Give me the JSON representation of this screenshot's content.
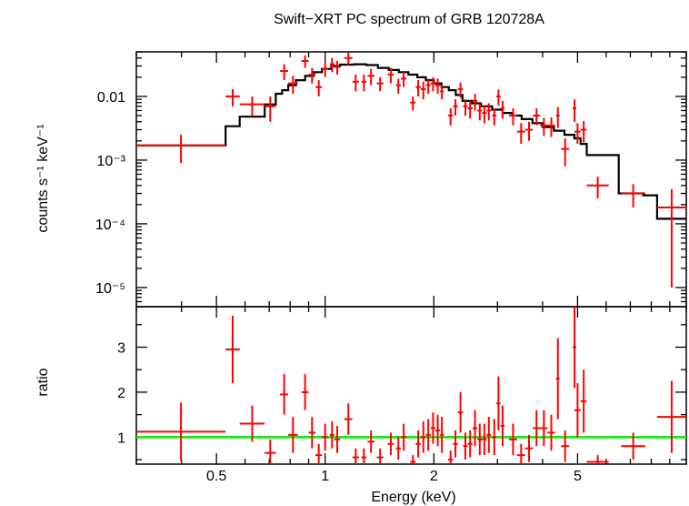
{
  "chart_data": [
    {
      "type": "scatter",
      "title": "Swift−XRT PC spectrum of GRB 120728A",
      "xlabel": "Energy (keV)",
      "ylabel": "counts s⁻¹ keV⁻¹",
      "xscale": "log",
      "yscale": "log",
      "xlim": [
        0.3,
        10
      ],
      "ylim": [
        5e-06,
        0.05
      ],
      "x_tick_labels": [
        "0.5",
        "1",
        "2",
        "5"
      ],
      "y_tick_labels": [
        "10⁻⁵",
        "10⁻⁴",
        "10⁻³",
        "0.01"
      ],
      "grid": false,
      "legend": "none",
      "colors": {
        "data": "#ff0000",
        "model": "#000000"
      },
      "series": [],
      "data_points": [
        [
          0.3,
          0.53,
          0.0017,
          0.0008
        ],
        [
          0.53,
          0.58,
          0.01,
          0.003
        ],
        [
          0.58,
          0.68,
          0.0075,
          0.0025
        ],
        [
          0.68,
          0.73,
          0.007,
          0.003
        ],
        [
          0.75,
          0.79,
          0.025,
          0.007
        ],
        [
          0.79,
          0.84,
          0.016,
          0.005
        ],
        [
          0.86,
          0.9,
          0.036,
          0.008
        ],
        [
          0.9,
          0.94,
          0.022,
          0.006
        ],
        [
          0.94,
          0.98,
          0.014,
          0.004
        ],
        [
          0.98,
          1.02,
          0.027,
          0.007
        ],
        [
          1.03,
          1.06,
          0.032,
          0.008
        ],
        [
          1.06,
          1.1,
          0.029,
          0.007
        ],
        [
          1.13,
          1.19,
          0.04,
          0.009
        ],
        [
          1.19,
          1.24,
          0.017,
          0.005
        ],
        [
          1.26,
          1.3,
          0.017,
          0.005
        ],
        [
          1.31,
          1.37,
          0.021,
          0.006
        ],
        [
          1.39,
          1.45,
          0.016,
          0.004
        ],
        [
          1.49,
          1.55,
          0.022,
          0.006
        ],
        [
          1.57,
          1.62,
          0.015,
          0.004
        ],
        [
          1.62,
          1.68,
          0.019,
          0.005
        ],
        [
          1.72,
          1.78,
          0.008,
          0.002
        ],
        [
          1.78,
          1.84,
          0.014,
          0.004
        ],
        [
          1.84,
          1.9,
          0.013,
          0.004
        ],
        [
          1.9,
          1.96,
          0.015,
          0.004
        ],
        [
          1.96,
          2.02,
          0.016,
          0.004
        ],
        [
          2.02,
          2.08,
          0.015,
          0.004
        ],
        [
          2.08,
          2.13,
          0.012,
          0.003
        ],
        [
          2.19,
          2.26,
          0.005,
          0.0015
        ],
        [
          2.26,
          2.33,
          0.007,
          0.002
        ],
        [
          2.33,
          2.41,
          0.013,
          0.0035
        ],
        [
          2.41,
          2.48,
          0.007,
          0.002
        ],
        [
          2.48,
          2.56,
          0.0065,
          0.002
        ],
        [
          2.56,
          2.64,
          0.0085,
          0.0025
        ],
        [
          2.64,
          2.72,
          0.006,
          0.0018
        ],
        [
          2.72,
          2.8,
          0.0055,
          0.0017
        ],
        [
          2.8,
          2.88,
          0.006,
          0.0018
        ],
        [
          2.9,
          2.98,
          0.005,
          0.0015
        ],
        [
          2.98,
          3.06,
          0.01,
          0.0028
        ],
        [
          3.06,
          3.14,
          0.0065,
          0.002
        ],
        [
          3.23,
          3.4,
          0.005,
          0.0015
        ],
        [
          3.4,
          3.58,
          0.0028,
          0.001
        ],
        [
          3.58,
          3.76,
          0.003,
          0.001
        ],
        [
          3.76,
          3.94,
          0.005,
          0.0015
        ],
        [
          3.94,
          4.13,
          0.0035,
          0.0011
        ],
        [
          4.13,
          4.33,
          0.0035,
          0.0012
        ],
        [
          4.36,
          4.46,
          0.005,
          0.0018
        ],
        [
          4.5,
          4.74,
          0.0015,
          0.0007
        ],
        [
          4.85,
          4.96,
          0.0065,
          0.0025
        ],
        [
          4.9,
          5.1,
          0.0028,
          0.001
        ],
        [
          5.1,
          5.3,
          0.003,
          0.0011
        ],
        [
          5.3,
          6.1,
          0.0004,
          0.00015
        ],
        [
          6.6,
          7.7,
          0.0003,
          0.00012
        ],
        [
          8.3,
          10.0,
          0.00018,
          0.00017
        ]
      ],
      "model_steps": [
        [
          0.3,
          0.0017
        ],
        [
          0.53,
          0.0034
        ],
        [
          0.58,
          0.0048
        ],
        [
          0.68,
          0.0075
        ],
        [
          0.73,
          0.011
        ],
        [
          0.76,
          0.0125
        ],
        [
          0.79,
          0.015
        ],
        [
          0.83,
          0.018
        ],
        [
          0.88,
          0.021
        ],
        [
          0.93,
          0.024
        ],
        [
          0.98,
          0.027
        ],
        [
          1.04,
          0.03
        ],
        [
          1.1,
          0.0315
        ],
        [
          1.2,
          0.032
        ],
        [
          1.3,
          0.031
        ],
        [
          1.4,
          0.028
        ],
        [
          1.5,
          0.026
        ],
        [
          1.6,
          0.024
        ],
        [
          1.7,
          0.022
        ],
        [
          1.8,
          0.02
        ],
        [
          1.9,
          0.018
        ],
        [
          2.0,
          0.016
        ],
        [
          2.1,
          0.014
        ],
        [
          2.2,
          0.0125
        ],
        [
          2.3,
          0.0105
        ],
        [
          2.4,
          0.0085
        ],
        [
          2.55,
          0.0078
        ],
        [
          2.7,
          0.007
        ],
        [
          2.9,
          0.0062
        ],
        [
          3.1,
          0.0055
        ],
        [
          3.3,
          0.005
        ],
        [
          3.5,
          0.0044
        ],
        [
          3.75,
          0.0038
        ],
        [
          4.0,
          0.0033
        ],
        [
          4.3,
          0.0029
        ],
        [
          4.6,
          0.0025
        ],
        [
          4.9,
          0.0022
        ],
        [
          5.1,
          0.0018
        ],
        [
          5.3,
          0.0012
        ],
        [
          5.9,
          0.0012
        ],
        [
          6.5,
          0.0003
        ],
        [
          7.6,
          0.00028
        ],
        [
          8.3,
          0.00012
        ],
        [
          10.0,
          0.00012
        ]
      ]
    },
    {
      "type": "scatter",
      "xlabel": "Energy (keV)",
      "ylabel": "ratio",
      "xscale": "log",
      "xlim": [
        0.3,
        10
      ],
      "ylim": [
        0.4,
        3.9
      ],
      "x_tick_labels": [
        "0.5",
        "1",
        "2",
        "5"
      ],
      "y_tick_labels": [
        "1",
        "2",
        "3"
      ],
      "reference_line": 1,
      "colors": {
        "data": "#ff0000",
        "reference": "#00ee00"
      },
      "data_points": [
        [
          0.3,
          0.53,
          1.12,
          0.65
        ],
        [
          0.53,
          0.58,
          2.95,
          0.75
        ],
        [
          0.58,
          0.68,
          1.3,
          0.4
        ],
        [
          0.68,
          0.73,
          0.65,
          0.3
        ],
        [
          0.75,
          0.79,
          1.95,
          0.45
        ],
        [
          0.79,
          0.84,
          1.05,
          0.4
        ],
        [
          0.86,
          0.9,
          2.0,
          0.4
        ],
        [
          0.9,
          0.94,
          1.1,
          0.35
        ],
        [
          0.94,
          0.98,
          0.6,
          0.25
        ],
        [
          0.98,
          1.02,
          1.0,
          0.3
        ],
        [
          1.03,
          1.06,
          1.05,
          0.3
        ],
        [
          1.06,
          1.1,
          0.95,
          0.3
        ],
        [
          1.13,
          1.19,
          1.4,
          0.35
        ],
        [
          1.19,
          1.24,
          0.55,
          0.2
        ],
        [
          1.26,
          1.3,
          0.55,
          0.2
        ],
        [
          1.31,
          1.37,
          0.9,
          0.25
        ],
        [
          1.39,
          1.45,
          0.55,
          0.2
        ],
        [
          1.49,
          1.55,
          0.85,
          0.25
        ],
        [
          1.57,
          1.62,
          0.75,
          0.25
        ],
        [
          1.62,
          1.68,
          1.0,
          0.3
        ],
        [
          1.72,
          1.78,
          0.45,
          0.15
        ],
        [
          1.78,
          1.84,
          0.85,
          0.3
        ],
        [
          1.84,
          1.9,
          1.0,
          0.35
        ],
        [
          1.9,
          1.96,
          1.05,
          0.35
        ],
        [
          1.96,
          2.02,
          1.2,
          0.35
        ],
        [
          2.02,
          2.08,
          1.15,
          0.35
        ],
        [
          2.08,
          2.13,
          1.05,
          0.4
        ],
        [
          2.19,
          2.26,
          0.5,
          0.2
        ],
        [
          2.26,
          2.33,
          0.85,
          0.3
        ],
        [
          2.33,
          2.41,
          1.55,
          0.45
        ],
        [
          2.41,
          2.48,
          0.8,
          0.3
        ],
        [
          2.48,
          2.56,
          0.85,
          0.3
        ],
        [
          2.56,
          2.64,
          1.2,
          0.4
        ],
        [
          2.64,
          2.72,
          0.95,
          0.35
        ],
        [
          2.72,
          2.8,
          0.95,
          0.35
        ],
        [
          2.8,
          2.88,
          1.05,
          0.4
        ],
        [
          2.9,
          2.98,
          1.0,
          0.4
        ],
        [
          2.98,
          3.06,
          1.75,
          0.6
        ],
        [
          3.06,
          3.14,
          1.25,
          0.45
        ],
        [
          3.23,
          3.4,
          0.95,
          0.35
        ],
        [
          3.4,
          3.58,
          0.6,
          0.25
        ],
        [
          3.58,
          3.76,
          0.75,
          0.3
        ],
        [
          3.76,
          3.94,
          1.2,
          0.4
        ],
        [
          3.94,
          4.13,
          1.2,
          0.4
        ],
        [
          4.13,
          4.33,
          1.1,
          0.4
        ],
        [
          4.36,
          4.46,
          2.3,
          0.9
        ],
        [
          4.5,
          4.74,
          0.8,
          0.35
        ],
        [
          4.85,
          4.96,
          3.0,
          0.9
        ],
        [
          4.9,
          5.1,
          1.6,
          0.6
        ],
        [
          5.1,
          5.3,
          1.8,
          0.7
        ],
        [
          5.3,
          6.1,
          0.45,
          0.15
        ],
        [
          6.6,
          7.7,
          0.8,
          0.3
        ],
        [
          8.3,
          10.0,
          1.45,
          0.8
        ]
      ]
    }
  ]
}
